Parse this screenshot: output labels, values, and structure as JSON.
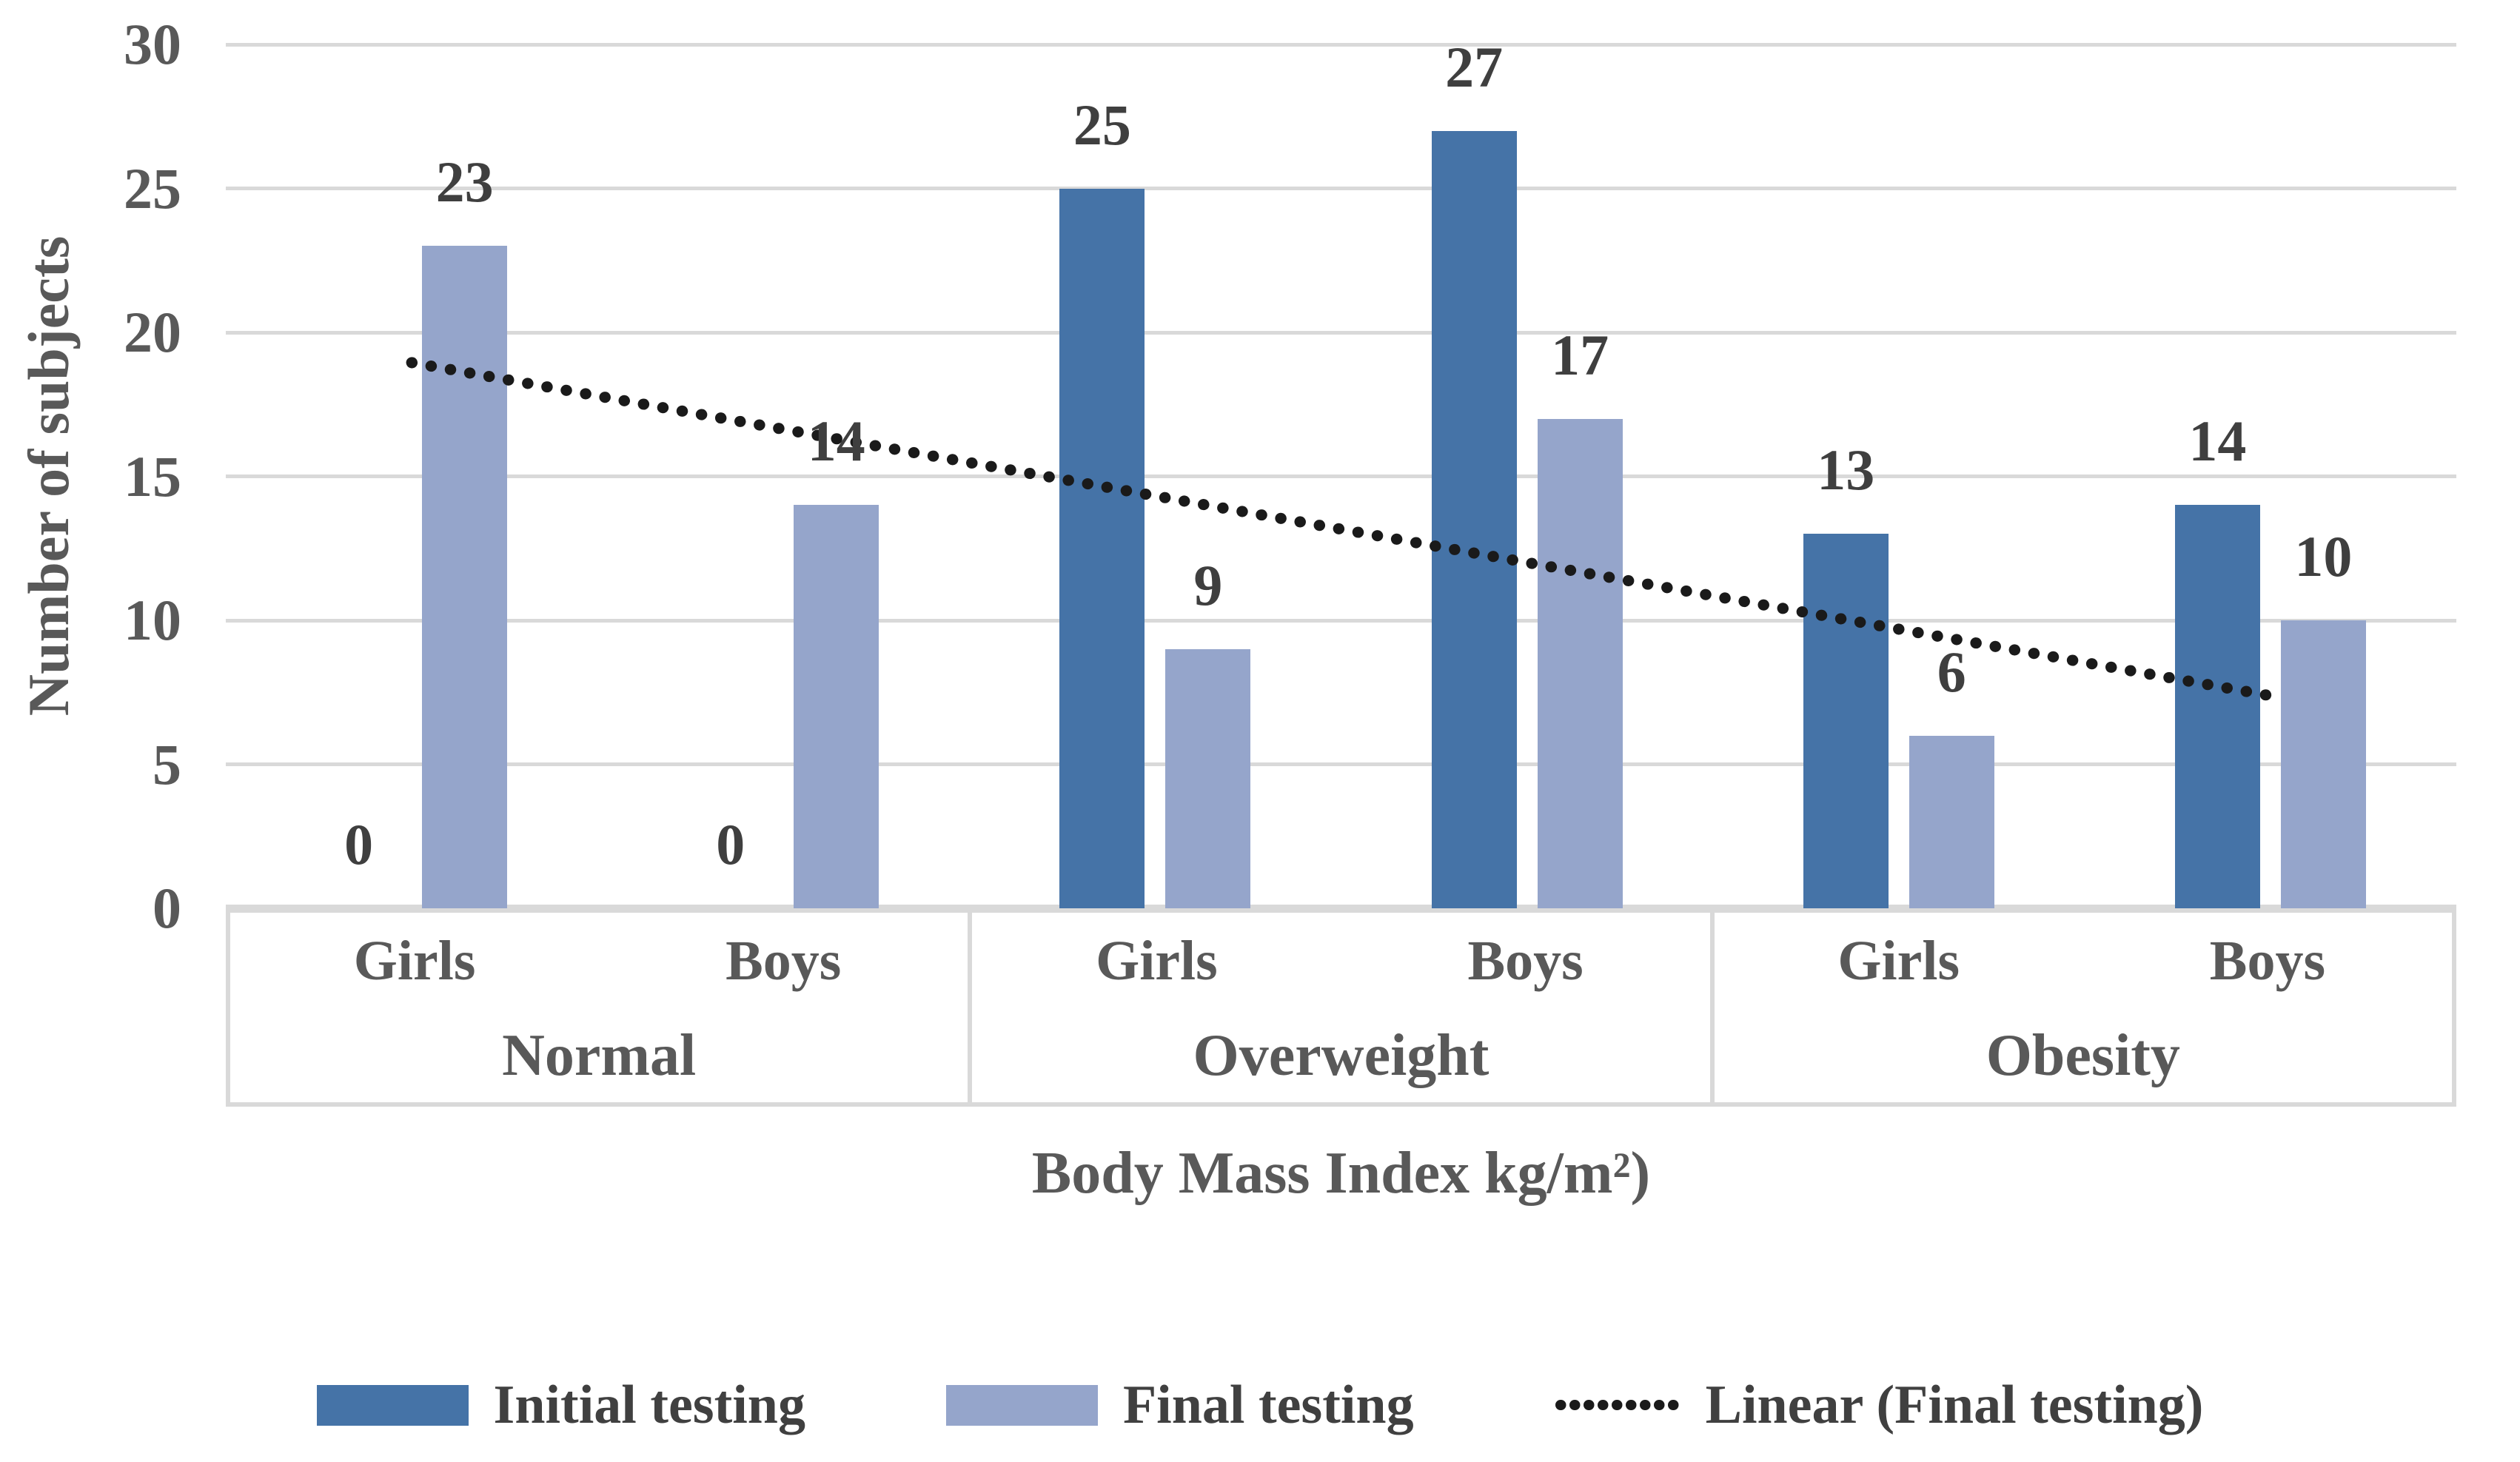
{
  "chart_data": {
    "type": "bar",
    "title": "",
    "ylabel": "Number of subjects",
    "xlabel": "Body Mass Index kg/m²)",
    "ylim": [
      0,
      30
    ],
    "ytick_step": 5,
    "yticks": [
      30,
      25,
      20,
      15,
      10,
      5,
      0
    ],
    "grid": true,
    "legend_position": "bottom",
    "groups": [
      {
        "label": "Normal",
        "categories": [
          "Girls",
          "Boys"
        ]
      },
      {
        "label": "Overweight",
        "categories": [
          "Girls",
          "Boys"
        ]
      },
      {
        "label": "Obesity",
        "categories": [
          "Girls",
          "Boys"
        ]
      }
    ],
    "categories": [
      "Girls",
      "Boys",
      "Girls",
      "Boys",
      "Girls",
      "Boys"
    ],
    "series": [
      {
        "name": "Initial testing",
        "color": "#4573A7",
        "values": [
          0,
          0,
          25,
          27,
          13,
          14
        ]
      },
      {
        "name": "Final testing",
        "color": "#95A5CB",
        "values": [
          23,
          14,
          9,
          17,
          6,
          10
        ]
      }
    ],
    "trendline": {
      "name": "Linear (Final testing)",
      "color": "#1A1A1A",
      "style": "dotted",
      "start_value": 18.95,
      "end_value": 7.38
    }
  },
  "legend": {
    "items": [
      {
        "label": "Initial testing",
        "swatch_type": "rect",
        "color": "#4573A7"
      },
      {
        "label": "Final testing",
        "swatch_type": "rect",
        "color": "#95A5CB"
      },
      {
        "label": "Linear (Final testing)",
        "swatch_type": "dotted-line",
        "color": "#1A1A1A"
      }
    ]
  },
  "colors": {
    "grid": "#D9D9D9",
    "axis_text": "#595959",
    "data_label_text": "#3F3F3F",
    "legend_text": "#404040",
    "background": "#FFFFFF"
  }
}
